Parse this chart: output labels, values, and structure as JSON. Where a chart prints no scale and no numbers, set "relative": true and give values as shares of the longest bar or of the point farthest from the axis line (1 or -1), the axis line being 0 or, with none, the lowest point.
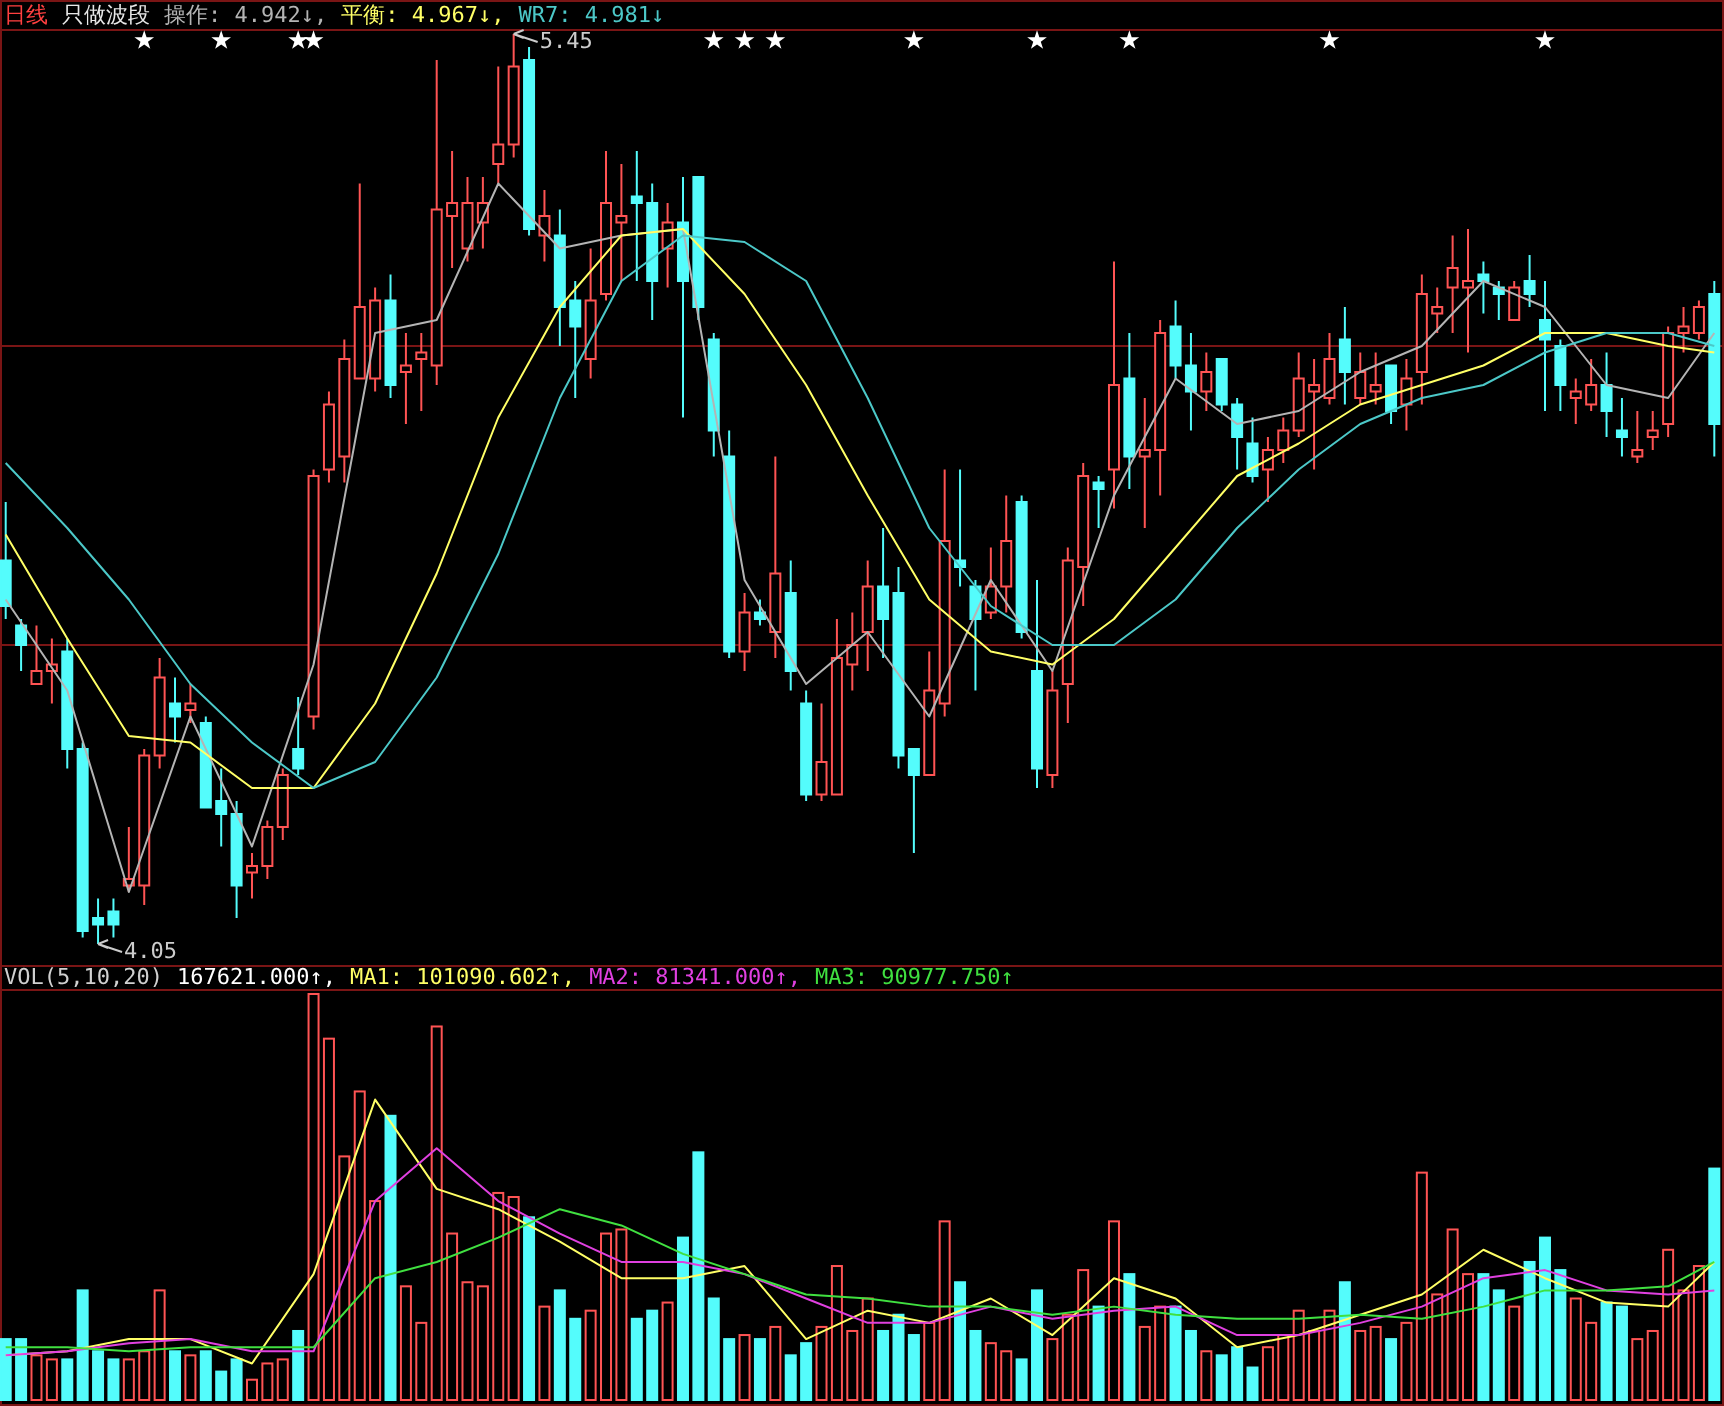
{
  "chart_data": [
    {
      "type": "candlestick",
      "title": "日线",
      "subtitle": "只做波段",
      "categories": [
        null,
        null,
        null,
        null,
        null,
        null,
        null,
        null,
        null,
        null,
        null,
        null,
        null,
        null,
        null,
        null,
        null,
        null,
        null,
        null,
        null,
        null,
        null,
        null,
        null,
        null,
        null,
        null,
        null,
        null,
        null,
        null,
        null,
        null,
        null,
        null,
        null,
        null,
        null,
        null,
        null,
        null,
        null,
        null,
        null,
        null,
        null,
        null,
        null,
        null,
        null,
        null,
        null,
        null,
        null,
        null,
        null,
        null,
        null,
        null,
        null,
        null,
        null,
        null,
        null,
        null,
        null,
        null,
        null,
        null,
        null,
        null,
        null,
        null,
        null,
        null,
        null,
        null,
        null,
        null,
        null,
        null,
        null,
        null,
        null,
        null,
        null,
        null,
        null,
        null,
        null,
        null,
        null,
        null,
        null,
        null,
        null,
        null,
        null,
        null,
        null,
        null,
        null,
        null,
        null,
        null,
        null,
        null,
        null,
        null,
        null,
        null
      ],
      "ohlc": [
        [
          4.64,
          4.73,
          4.55,
          4.57
        ],
        [
          4.54,
          4.55,
          4.47,
          4.51
        ],
        [
          4.45,
          4.54,
          4.45,
          4.47
        ],
        [
          4.47,
          4.52,
          4.42,
          4.48
        ],
        [
          4.5,
          4.52,
          4.32,
          4.35
        ],
        [
          4.35,
          4.36,
          4.06,
          4.07
        ],
        [
          4.09,
          4.12,
          4.05,
          4.08
        ],
        [
          4.1,
          4.12,
          4.06,
          4.08
        ],
        [
          4.14,
          4.23,
          4.13,
          4.15
        ],
        [
          4.14,
          4.35,
          4.11,
          4.34
        ],
        [
          4.34,
          4.49,
          4.32,
          4.46
        ],
        [
          4.42,
          4.46,
          4.36,
          4.4
        ],
        [
          4.41,
          4.45,
          4.39,
          4.42
        ],
        [
          4.39,
          4.4,
          4.26,
          4.26
        ],
        [
          4.27,
          4.32,
          4.2,
          4.25
        ],
        [
          4.25,
          4.27,
          4.09,
          4.14
        ],
        [
          4.16,
          4.19,
          4.12,
          4.17
        ],
        [
          4.17,
          4.24,
          4.15,
          4.23
        ],
        [
          4.23,
          4.32,
          4.21,
          4.31
        ],
        [
          4.35,
          4.43,
          4.31,
          4.32
        ],
        [
          4.4,
          4.78,
          4.38,
          4.77
        ],
        [
          4.78,
          4.9,
          4.76,
          4.88
        ],
        [
          4.8,
          4.98,
          4.76,
          4.95
        ],
        [
          4.92,
          5.22,
          4.92,
          5.03
        ],
        [
          4.92,
          5.06,
          4.9,
          5.04
        ],
        [
          5.04,
          5.08,
          4.89,
          4.91
        ],
        [
          4.93,
          4.99,
          4.85,
          4.94
        ],
        [
          4.95,
          4.99,
          4.87,
          4.96
        ],
        [
          4.94,
          5.41,
          4.91,
          5.18
        ],
        [
          5.17,
          5.27,
          5.09,
          5.19
        ],
        [
          5.12,
          5.23,
          5.1,
          5.19
        ],
        [
          5.16,
          5.23,
          5.12,
          5.19
        ],
        [
          5.25,
          5.4,
          5.22,
          5.28
        ],
        [
          5.28,
          5.45,
          5.26,
          5.4
        ],
        [
          5.41,
          5.43,
          5.14,
          5.15
        ],
        [
          5.14,
          5.21,
          5.1,
          5.17
        ],
        [
          5.14,
          5.18,
          4.97,
          5.03
        ],
        [
          5.04,
          5.07,
          4.89,
          5.0
        ],
        [
          4.95,
          5.12,
          4.92,
          5.04
        ],
        [
          5.05,
          5.27,
          5.04,
          5.19
        ],
        [
          5.16,
          5.25,
          5.07,
          5.17
        ],
        [
          5.2,
          5.27,
          5.07,
          5.19
        ],
        [
          5.19,
          5.22,
          5.01,
          5.07
        ],
        [
          5.12,
          5.19,
          5.06,
          5.16
        ],
        [
          5.16,
          5.23,
          4.86,
          5.07
        ],
        [
          5.23,
          5.23,
          5.01,
          5.03
        ],
        [
          4.98,
          4.99,
          4.8,
          4.84
        ],
        [
          4.8,
          4.84,
          4.49,
          4.5
        ],
        [
          4.5,
          4.59,
          4.47,
          4.56
        ],
        [
          4.56,
          4.58,
          4.54,
          4.55
        ],
        [
          4.53,
          4.8,
          4.49,
          4.62
        ],
        [
          4.59,
          4.64,
          4.44,
          4.47
        ],
        [
          4.42,
          4.44,
          4.27,
          4.28
        ],
        [
          4.28,
          4.42,
          4.27,
          4.33
        ],
        [
          4.28,
          4.55,
          4.28,
          4.49
        ],
        [
          4.48,
          4.56,
          4.44,
          4.51
        ],
        [
          4.53,
          4.64,
          4.47,
          4.6
        ],
        [
          4.6,
          4.69,
          4.49,
          4.55
        ],
        [
          4.59,
          4.63,
          4.32,
          4.34
        ],
        [
          4.35,
          4.35,
          4.19,
          4.31
        ],
        [
          4.31,
          4.5,
          4.31,
          4.44
        ],
        [
          4.42,
          4.78,
          4.4,
          4.67
        ],
        [
          4.64,
          4.78,
          4.6,
          4.63
        ],
        [
          4.6,
          4.61,
          4.44,
          4.55
        ],
        [
          4.56,
          4.66,
          4.55,
          4.6
        ],
        [
          4.6,
          4.74,
          4.56,
          4.67
        ],
        [
          4.73,
          4.74,
          4.52,
          4.53
        ],
        [
          4.47,
          4.61,
          4.29,
          4.32
        ],
        [
          4.31,
          4.47,
          4.29,
          4.44
        ],
        [
          4.45,
          4.66,
          4.39,
          4.64
        ],
        [
          4.63,
          4.79,
          4.57,
          4.77
        ],
        [
          4.76,
          4.77,
          4.69,
          4.75
        ],
        [
          4.78,
          5.1,
          4.72,
          4.91
        ],
        [
          4.92,
          4.99,
          4.75,
          4.8
        ],
        [
          4.8,
          4.89,
          4.69,
          4.81
        ],
        [
          4.81,
          5.01,
          4.74,
          4.99
        ],
        [
          5.0,
          5.04,
          4.92,
          4.94
        ],
        [
          4.94,
          4.99,
          4.84,
          4.9
        ],
        [
          4.9,
          4.96,
          4.87,
          4.93
        ],
        [
          4.95,
          4.95,
          4.87,
          4.88
        ],
        [
          4.88,
          4.89,
          4.78,
          4.83
        ],
        [
          4.82,
          4.86,
          4.76,
          4.77
        ],
        [
          4.78,
          4.83,
          4.73,
          4.81
        ],
        [
          4.81,
          4.86,
          4.79,
          4.84
        ],
        [
          4.84,
          4.96,
          4.83,
          4.92
        ],
        [
          4.9,
          4.95,
          4.78,
          4.91
        ],
        [
          4.89,
          4.99,
          4.88,
          4.95
        ],
        [
          4.98,
          5.03,
          4.88,
          4.93
        ],
        [
          4.89,
          4.96,
          4.88,
          4.93
        ],
        [
          4.9,
          4.96,
          4.88,
          4.91
        ],
        [
          4.94,
          4.94,
          4.85,
          4.87
        ],
        [
          4.88,
          4.95,
          4.84,
          4.92
        ],
        [
          4.93,
          5.08,
          4.88,
          5.05
        ],
        [
          5.02,
          5.06,
          4.99,
          5.03
        ],
        [
          5.06,
          5.14,
          4.99,
          5.09
        ],
        [
          5.06,
          5.15,
          4.96,
          5.07
        ],
        [
          5.08,
          5.1,
          5.02,
          5.07
        ],
        [
          5.06,
          5.07,
          5.01,
          5.05
        ],
        [
          5.01,
          5.07,
          5.01,
          5.06
        ],
        [
          5.07,
          5.11,
          5.03,
          5.05
        ],
        [
          5.01,
          5.07,
          4.87,
          4.98
        ],
        [
          4.97,
          4.98,
          4.87,
          4.91
        ],
        [
          4.89,
          4.92,
          4.85,
          4.9
        ],
        [
          4.88,
          4.95,
          4.87,
          4.91
        ],
        [
          4.91,
          4.96,
          4.83,
          4.87
        ],
        [
          4.84,
          4.89,
          4.8,
          4.83
        ],
        [
          4.8,
          4.87,
          4.79,
          4.81
        ],
        [
          4.83,
          4.87,
          4.81,
          4.84
        ],
        [
          4.85,
          5.0,
          4.83,
          4.99
        ],
        [
          4.99,
          5.03,
          4.96,
          5.0
        ],
        [
          4.99,
          5.04,
          4.98,
          5.03
        ],
        [
          5.05,
          5.07,
          4.8,
          4.85
        ]
      ],
      "colors": [
        "#54fcfc",
        "#54fcfc",
        "#ff5454",
        "#ff5454",
        "#54fcfc",
        "#54fcfc",
        "#54fcfc",
        "#54fcfc",
        "#ff5454",
        "#ff5454",
        "#ff5454",
        "#54fcfc",
        "#ff5454",
        "#54fcfc",
        "#54fcfc",
        "#54fcfc",
        "#ff5454",
        "#ff5454",
        "#ff5454",
        "#54fcfc",
        "#ff5454",
        "#ff5454",
        "#ff5454",
        "#ff5454",
        "#ff5454",
        "#54fcfc",
        "#ff5454",
        "#ff5454",
        "#ff5454",
        "#ff5454",
        "#ff5454",
        "#ff5454",
        "#ff5454",
        "#ff5454",
        "#54fcfc",
        "#ff5454",
        "#54fcfc",
        "#54fcfc",
        "#ff5454",
        "#ff5454",
        "#ff5454",
        "#54fcfc",
        "#54fcfc",
        "#ff5454",
        "#54fcfc",
        "#54fcfc",
        "#54fcfc",
        "#54fcfc",
        "#ff5454",
        "#54fcfc",
        "#ff5454",
        "#54fcfc",
        "#54fcfc",
        "#ff5454",
        "#ff5454",
        "#ff5454",
        "#ff5454",
        "#54fcfc",
        "#54fcfc",
        "#54fcfc",
        "#ff5454",
        "#ff5454",
        "#54fcfc",
        "#54fcfc",
        "#ff5454",
        "#ff5454",
        "#54fcfc",
        "#54fcfc",
        "#ff5454",
        "#ff5454",
        "#ff5454",
        "#54fcfc",
        "#ff5454",
        "#54fcfc",
        "#ff5454",
        "#ff5454",
        "#54fcfc",
        "#54fcfc",
        "#ff5454",
        "#54fcfc",
        "#54fcfc",
        "#54fcfc",
        "#ff5454",
        "#ff5454",
        "#ff5454",
        "#ff5454",
        "#ff5454",
        "#54fcfc",
        "#ff5454",
        "#ff5454",
        "#54fcfc",
        "#ff5454",
        "#ff5454",
        "#ff5454",
        "#ff5454",
        "#ff5454",
        "#54fcfc",
        "#54fcfc",
        "#ff5454",
        "#54fcfc",
        "#54fcfc",
        "#54fcfc",
        "#ff5454",
        "#ff5454",
        "#54fcfc",
        "#54fcfc",
        "#ff5454",
        "#ff5454",
        "#ff5454",
        "#ff5454",
        "#ff5454",
        "#54fcfc"
      ],
      "series": [
        {
          "type": "line",
          "name": "操作: 4.942↓,",
          "color": "#b4b4b4",
          "values": [
            4.58,
            null,
            null,
            null,
            4.44,
            null,
            null,
            null,
            4.13,
            null,
            null,
            null,
            4.4,
            null,
            null,
            null,
            4.2,
            null,
            null,
            null,
            4.48,
            null,
            null,
            null,
            4.99,
            null,
            null,
            null,
            5.01,
            null,
            null,
            null,
            5.22,
            null,
            null,
            null,
            5.12,
            null,
            null,
            null,
            5.14,
            null,
            null,
            null,
            5.15,
            null,
            null,
            null,
            4.61,
            null,
            null,
            null,
            4.45,
            null,
            null,
            null,
            4.53,
            null,
            null,
            null,
            4.4,
            null,
            null,
            null,
            4.61,
            null,
            null,
            null,
            4.47,
            null,
            null,
            null,
            4.74,
            null,
            null,
            null,
            4.92,
            null,
            null,
            null,
            4.85,
            null,
            null,
            null,
            4.87,
            null,
            null,
            null,
            4.93,
            null,
            null,
            null,
            4.97,
            null,
            null,
            null,
            5.07,
            null,
            null,
            null,
            5.03,
            null,
            null,
            null,
            4.91,
            null,
            null,
            null,
            4.89,
            null,
            null,
            4.99
          ]
        },
        {
          "type": "line",
          "name": "平衡: 4.967↓,",
          "color": "#ffff66",
          "values": [
            4.68,
            null,
            null,
            null,
            4.52,
            null,
            null,
            null,
            4.37,
            null,
            null,
            null,
            4.36,
            null,
            null,
            null,
            4.29,
            null,
            null,
            null,
            4.29,
            null,
            null,
            null,
            4.42,
            null,
            null,
            null,
            4.62,
            null,
            null,
            null,
            4.86,
            null,
            null,
            null,
            5.03,
            null,
            null,
            null,
            5.14,
            null,
            null,
            null,
            5.15,
            null,
            null,
            null,
            5.05,
            null,
            null,
            null,
            4.91,
            null,
            null,
            null,
            4.74,
            null,
            null,
            null,
            4.58,
            null,
            null,
            null,
            4.5,
            null,
            null,
            null,
            4.48,
            null,
            null,
            null,
            4.55,
            null,
            null,
            null,
            4.66,
            null,
            null,
            null,
            4.77,
            null,
            null,
            null,
            4.82,
            null,
            null,
            null,
            4.88,
            null,
            null,
            null,
            4.91,
            null,
            null,
            null,
            4.94,
            null,
            null,
            null,
            4.99,
            null,
            null,
            null,
            4.99,
            null,
            null,
            null,
            4.97,
            null,
            null,
            4.96
          ]
        },
        {
          "type": "line",
          "name": "WR7: 4.981↓",
          "color": "#4cc8c8",
          "values": [
            4.79,
            null,
            null,
            null,
            4.69,
            null,
            null,
            null,
            4.58,
            null,
            null,
            null,
            4.45,
            null,
            null,
            null,
            4.36,
            null,
            null,
            null,
            4.29,
            null,
            null,
            null,
            4.33,
            null,
            null,
            null,
            4.46,
            null,
            null,
            null,
            4.65,
            null,
            null,
            null,
            4.89,
            null,
            null,
            null,
            5.07,
            null,
            null,
            null,
            5.14,
            null,
            null,
            null,
            5.13,
            null,
            null,
            null,
            5.07,
            null,
            null,
            null,
            4.89,
            null,
            null,
            null,
            4.69,
            null,
            null,
            null,
            4.57,
            null,
            null,
            null,
            4.51,
            null,
            null,
            null,
            4.51,
            null,
            null,
            null,
            4.58,
            null,
            null,
            null,
            4.69,
            null,
            null,
            null,
            4.78,
            null,
            null,
            null,
            4.85,
            null,
            null,
            null,
            4.89,
            null,
            null,
            null,
            4.91,
            null,
            null,
            null,
            4.96,
            null,
            null,
            null,
            4.99,
            null,
            null,
            null,
            4.99,
            null,
            null,
            4.97
          ]
        },
        {
          "type": "scatter",
          "marker": "star",
          "color": "#ffffff",
          "values": [
            null,
            null,
            null,
            null,
            null,
            null,
            null,
            null,
            null,
            5.44,
            null,
            null,
            null,
            null,
            5.44,
            null,
            null,
            null,
            null,
            5.44,
            5.44,
            null,
            null,
            null,
            null,
            null,
            null,
            null,
            null,
            null,
            null,
            null,
            null,
            null,
            null,
            null,
            null,
            null,
            null,
            null,
            null,
            null,
            null,
            null,
            null,
            null,
            5.44,
            null,
            5.44,
            null,
            5.44,
            null,
            null,
            null,
            null,
            null,
            null,
            null,
            null,
            5.44,
            null,
            null,
            null,
            null,
            null,
            null,
            null,
            5.44,
            null,
            null,
            null,
            null,
            null,
            5.44,
            null,
            null,
            null,
            null,
            null,
            null,
            null,
            null,
            null,
            null,
            null,
            null,
            5.44,
            null,
            null,
            null,
            null,
            null,
            null,
            null,
            null,
            null,
            null,
            null,
            null,
            null,
            5.44,
            null,
            null,
            null,
            null,
            null,
            null,
            null,
            null,
            null,
            null,
            null
          ]
        }
      ],
      "yticks": [
        {
          "value": 4.97,
          "label": null
        },
        {
          "value": 4.51,
          "label": null
        }
      ],
      "grid": true,
      "legend": "top left",
      "annotations": [
        "5.45",
        "4.05"
      ]
    },
    {
      "type": "bar",
      "relative": true,
      "title": "VOL(5,10,20)",
      "annotations": [
        "167621.000↑,"
      ],
      "legend": "top left",
      "categories": [
        null,
        null,
        null,
        null,
        null,
        null,
        null,
        null,
        null,
        null,
        null,
        null,
        null,
        null,
        null,
        null,
        null,
        null,
        null,
        null,
        null,
        null,
        null,
        null,
        null,
        null,
        null,
        null,
        null,
        null,
        null,
        null,
        null,
        null,
        null,
        null,
        null,
        null,
        null,
        null,
        null,
        null,
        null,
        null,
        null,
        null,
        null,
        null,
        null,
        null,
        null,
        null,
        null,
        null,
        null,
        null,
        null,
        null,
        null,
        null,
        null,
        null,
        null,
        null,
        null,
        null,
        null,
        null,
        null,
        null,
        null,
        null,
        null,
        null,
        null,
        null,
        null,
        null,
        null,
        null,
        null,
        null,
        null,
        null,
        null,
        null,
        null,
        null,
        null,
        null,
        null,
        null,
        null,
        null,
        null,
        null,
        null,
        null,
        null,
        null,
        null,
        null,
        null,
        null,
        null,
        null,
        null,
        null,
        null,
        null,
        null,
        null
      ],
      "values": [
        0.15,
        0.15,
        0.11,
        0.1,
        0.1,
        0.27,
        0.12,
        0.1,
        0.1,
        0.12,
        0.27,
        0.12,
        0.11,
        0.12,
        0.07,
        0.1,
        0.05,
        0.09,
        0.1,
        0.17,
        1.0,
        0.89,
        0.6,
        0.76,
        0.49,
        0.7,
        0.28,
        0.19,
        0.92,
        0.41,
        0.29,
        0.28,
        0.51,
        0.5,
        0.45,
        0.23,
        0.27,
        0.2,
        0.22,
        0.41,
        0.42,
        0.2,
        0.22,
        0.24,
        0.4,
        0.61,
        0.25,
        0.15,
        0.16,
        0.15,
        0.18,
        0.11,
        0.14,
        0.18,
        0.33,
        0.17,
        0.25,
        0.17,
        0.21,
        0.16,
        0.19,
        0.44,
        0.29,
        0.17,
        0.14,
        0.12,
        0.1,
        0.27,
        0.15,
        0.21,
        0.32,
        0.23,
        0.44,
        0.31,
        0.18,
        0.23,
        0.23,
        0.17,
        0.12,
        0.11,
        0.13,
        0.08,
        0.13,
        0.16,
        0.22,
        0.17,
        0.22,
        0.29,
        0.17,
        0.18,
        0.15,
        0.19,
        0.56,
        0.26,
        0.42,
        0.31,
        0.31,
        0.27,
        0.23,
        0.34,
        0.4,
        0.32,
        0.25,
        0.19,
        0.24,
        0.23,
        0.15,
        0.17,
        0.37,
        0.27,
        0.33,
        0.57
      ],
      "colors": [
        "#54fcfc",
        "#54fcfc",
        "#ff5454",
        "#ff5454",
        "#54fcfc",
        "#54fcfc",
        "#54fcfc",
        "#54fcfc",
        "#ff5454",
        "#ff5454",
        "#ff5454",
        "#54fcfc",
        "#ff5454",
        "#54fcfc",
        "#54fcfc",
        "#54fcfc",
        "#ff5454",
        "#ff5454",
        "#ff5454",
        "#54fcfc",
        "#ff5454",
        "#ff5454",
        "#ff5454",
        "#ff5454",
        "#ff5454",
        "#54fcfc",
        "#ff5454",
        "#ff5454",
        "#ff5454",
        "#ff5454",
        "#ff5454",
        "#ff5454",
        "#ff5454",
        "#ff5454",
        "#54fcfc",
        "#ff5454",
        "#54fcfc",
        "#54fcfc",
        "#ff5454",
        "#ff5454",
        "#ff5454",
        "#54fcfc",
        "#54fcfc",
        "#ff5454",
        "#54fcfc",
        "#54fcfc",
        "#54fcfc",
        "#54fcfc",
        "#ff5454",
        "#54fcfc",
        "#ff5454",
        "#54fcfc",
        "#54fcfc",
        "#ff5454",
        "#ff5454",
        "#ff5454",
        "#ff5454",
        "#54fcfc",
        "#54fcfc",
        "#54fcfc",
        "#ff5454",
        "#ff5454",
        "#54fcfc",
        "#54fcfc",
        "#ff5454",
        "#ff5454",
        "#54fcfc",
        "#54fcfc",
        "#ff5454",
        "#ff5454",
        "#ff5454",
        "#54fcfc",
        "#ff5454",
        "#54fcfc",
        "#ff5454",
        "#ff5454",
        "#54fcfc",
        "#54fcfc",
        "#ff5454",
        "#54fcfc",
        "#54fcfc",
        "#54fcfc",
        "#ff5454",
        "#ff5454",
        "#ff5454",
        "#ff5454",
        "#ff5454",
        "#54fcfc",
        "#ff5454",
        "#ff5454",
        "#54fcfc",
        "#ff5454",
        "#ff5454",
        "#ff5454",
        "#ff5454",
        "#ff5454",
        "#54fcfc",
        "#54fcfc",
        "#ff5454",
        "#54fcfc",
        "#54fcfc",
        "#54fcfc",
        "#ff5454",
        "#ff5454",
        "#54fcfc",
        "#54fcfc",
        "#ff5454",
        "#ff5454",
        "#ff5454",
        "#ff5454",
        "#ff5454",
        "#54fcfc"
      ],
      "series": [
        {
          "type": "line",
          "name": "MA1: 101090.602↑,",
          "color": "#ffff66",
          "values": [
            0.11,
            null,
            null,
            null,
            0.12,
            null,
            null,
            null,
            0.15,
            null,
            null,
            null,
            0.15,
            null,
            null,
            null,
            0.09,
            null,
            null,
            null,
            0.31,
            null,
            null,
            null,
            0.74,
            null,
            null,
            null,
            0.52,
            null,
            null,
            null,
            0.47,
            null,
            null,
            null,
            0.39,
            null,
            null,
            null,
            0.3,
            null,
            null,
            null,
            0.3,
            null,
            null,
            null,
            0.33,
            null,
            null,
            null,
            0.15,
            null,
            null,
            null,
            0.22,
            null,
            null,
            null,
            0.19,
            null,
            null,
            null,
            0.25,
            null,
            null,
            null,
            0.16,
            null,
            null,
            null,
            0.3,
            null,
            null,
            null,
            0.25,
            null,
            null,
            null,
            0.13,
            null,
            null,
            null,
            0.16,
            null,
            null,
            null,
            0.21,
            null,
            null,
            null,
            0.26,
            null,
            null,
            null,
            0.37,
            null,
            null,
            null,
            0.3,
            null,
            null,
            null,
            0.24,
            null,
            null,
            null,
            0.23,
            null,
            null,
            0.34
          ]
        },
        {
          "type": "line",
          "name": "MA2: 81341.000↑,",
          "color": "#e040e0",
          "values": [
            0.11,
            null,
            null,
            null,
            0.12,
            null,
            null,
            null,
            0.14,
            null,
            null,
            null,
            0.15,
            null,
            null,
            null,
            0.12,
            null,
            null,
            null,
            0.12,
            null,
            null,
            null,
            0.49,
            null,
            null,
            null,
            0.62,
            null,
            null,
            null,
            0.49,
            null,
            null,
            null,
            0.41,
            null,
            null,
            null,
            0.34,
            null,
            null,
            null,
            0.34,
            null,
            null,
            null,
            0.31,
            null,
            null,
            null,
            0.25,
            null,
            null,
            null,
            0.19,
            null,
            null,
            null,
            0.19,
            null,
            null,
            null,
            0.23,
            null,
            null,
            null,
            0.2,
            null,
            null,
            null,
            0.22,
            null,
            null,
            null,
            0.23,
            null,
            null,
            null,
            0.16,
            null,
            null,
            null,
            0.16,
            null,
            null,
            null,
            0.19,
            null,
            null,
            null,
            0.23,
            null,
            null,
            null,
            0.3,
            null,
            null,
            null,
            0.32,
            null,
            null,
            null,
            0.27,
            null,
            null,
            null,
            0.26,
            null,
            null,
            0.27
          ]
        },
        {
          "type": "line",
          "name": "MA3: 90977.750↑",
          "color": "#40e040",
          "values": [
            0.13,
            null,
            null,
            null,
            0.13,
            null,
            null,
            null,
            0.12,
            null,
            null,
            null,
            0.13,
            null,
            null,
            null,
            0.13,
            null,
            null,
            null,
            0.13,
            null,
            null,
            null,
            0.3,
            null,
            null,
            null,
            0.34,
            null,
            null,
            null,
            0.4,
            null,
            null,
            null,
            0.47,
            null,
            null,
            null,
            0.43,
            null,
            null,
            null,
            0.36,
            null,
            null,
            null,
            0.31,
            null,
            null,
            null,
            0.26,
            null,
            null,
            null,
            0.25,
            null,
            null,
            null,
            0.23,
            null,
            null,
            null,
            0.23,
            null,
            null,
            null,
            0.21,
            null,
            null,
            null,
            0.23,
            null,
            null,
            null,
            0.21,
            null,
            null,
            null,
            0.2,
            null,
            null,
            null,
            0.2,
            null,
            null,
            null,
            0.21,
            null,
            null,
            null,
            0.2,
            null,
            null,
            null,
            0.23,
            null,
            null,
            null,
            0.27,
            null,
            null,
            null,
            0.27,
            null,
            null,
            null,
            0.28,
            null,
            null,
            0.34
          ]
        }
      ]
    }
  ]
}
